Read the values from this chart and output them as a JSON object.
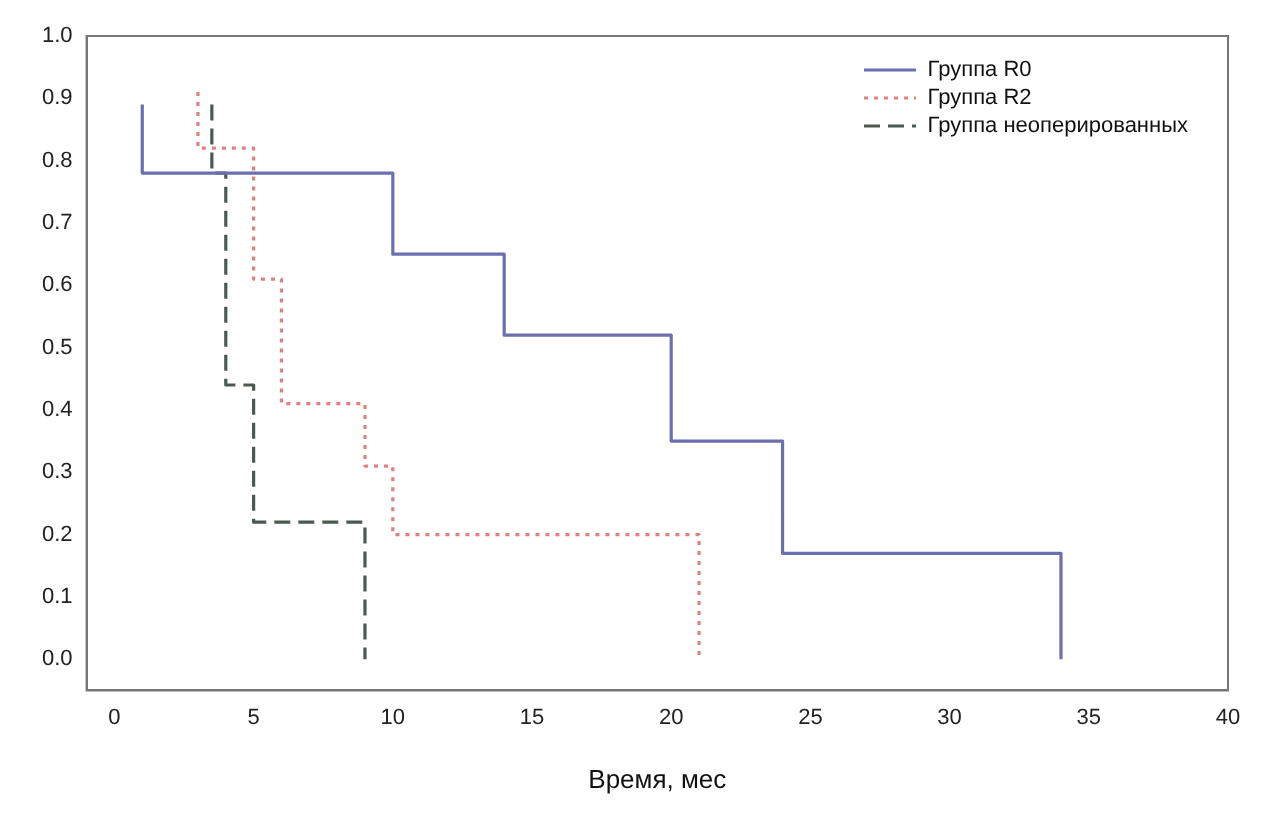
{
  "chart_data": {
    "type": "step",
    "xlabel": "Время, мес",
    "xlim": [
      -1,
      40
    ],
    "ylim": [
      -0.05,
      1.0
    ],
    "xticks": [
      0,
      5,
      10,
      15,
      20,
      25,
      30,
      35,
      40
    ],
    "yticks": [
      {
        "value": 0,
        "label": "0.0"
      },
      {
        "value": 0.1,
        "label": "0.1"
      },
      {
        "value": 0.2,
        "label": "0.2"
      },
      {
        "value": 0.3,
        "label": "0.3"
      },
      {
        "value": 0.4,
        "label": "0.4"
      },
      {
        "value": 0.5,
        "label": "0.5"
      },
      {
        "value": 0.6,
        "label": "0.6"
      },
      {
        "value": 0.7,
        "label": "0.7"
      },
      {
        "value": 0.8,
        "label": "0.8"
      },
      {
        "value": 0.9,
        "label": "0.9"
      },
      {
        "value": 1,
        "label": "1.0"
      }
    ],
    "grid": false,
    "legend": "top right",
    "marker": "none",
    "series": [
      {
        "name": "Группа R0",
        "color": "#6b6fb0",
        "line_style": "solid",
        "x": [
          1,
          1,
          10,
          14,
          20,
          24,
          34
        ],
        "values": [
          0.89,
          0.78,
          0.65,
          0.52,
          0.35,
          0.17,
          0.0
        ]
      },
      {
        "name": "Группа R2",
        "color": "#e08080",
        "line_style": "dotted",
        "x": [
          3,
          3,
          5,
          6,
          9,
          10,
          21
        ],
        "values": [
          0.91,
          0.82,
          0.61,
          0.41,
          0.31,
          0.2,
          0.0
        ]
      },
      {
        "name": "Группа неоперированных",
        "color": "#4a5a50",
        "line_style": "dashed",
        "x": [
          3.5,
          3.5,
          4,
          5,
          9
        ],
        "values": [
          0.89,
          0.78,
          0.44,
          0.22,
          0.0
        ]
      }
    ]
  }
}
